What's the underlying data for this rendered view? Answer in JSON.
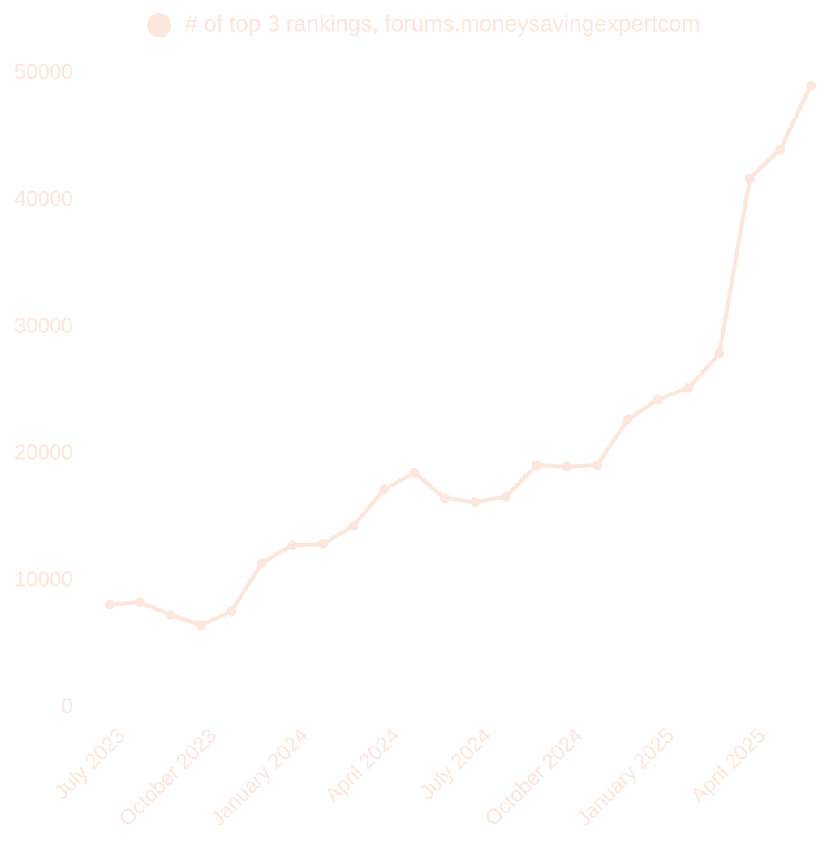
{
  "chart_data": {
    "type": "line",
    "categories": [
      "July 2023",
      null,
      null,
      "October 2023",
      null,
      null,
      "January 2024",
      null,
      null,
      "April 2024",
      null,
      null,
      "July 2024",
      null,
      null,
      "October 2024",
      null,
      null,
      "January 2025",
      null,
      null,
      "April 2025",
      null,
      null
    ],
    "series": [
      {
        "name": "# of top 3 rankings, forums.moneysavingexpertcom",
        "color": "#fde6db",
        "values": [
          8100,
          8300,
          7300,
          6500,
          7600,
          11400,
          12800,
          12900,
          14300,
          17200,
          18500,
          16500,
          16200,
          16600,
          19100,
          19000,
          19100,
          22700,
          24300,
          25200,
          27900,
          41700,
          44000,
          49000
        ]
      }
    ],
    "ylim": [
      0,
      50000
    ],
    "yticks": [
      0,
      10000,
      20000,
      30000,
      40000,
      50000
    ],
    "grid": false
  }
}
